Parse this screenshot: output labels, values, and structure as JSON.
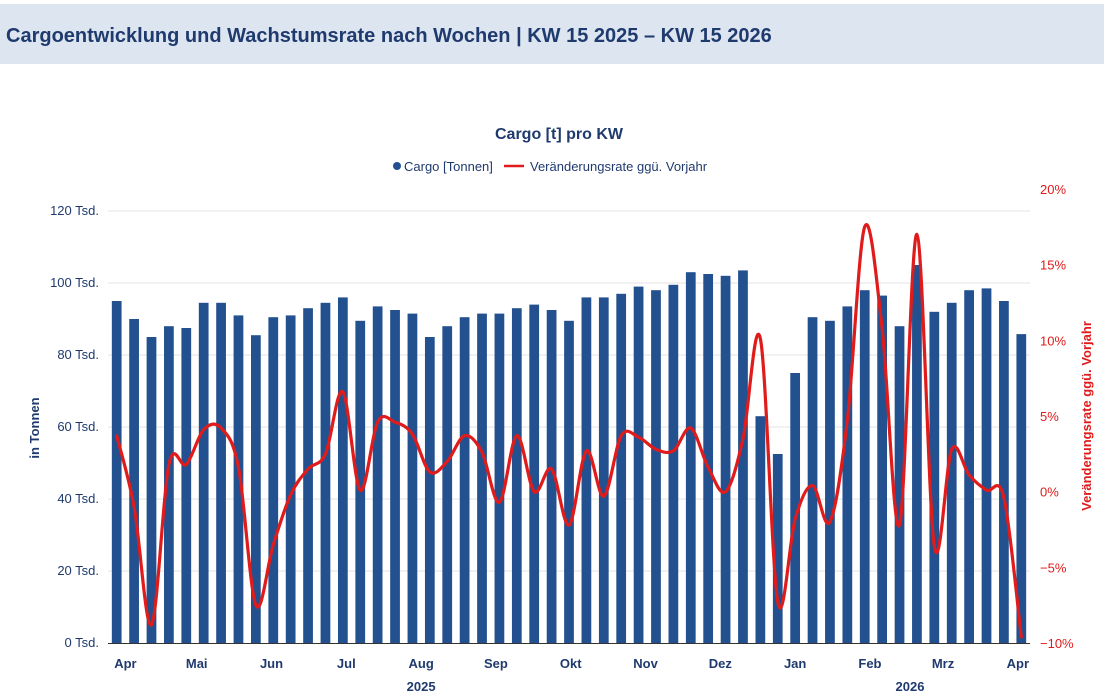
{
  "header": {
    "title": "Cargoentwicklung und Wachstumsrate nach Wochen | KW 15 2025 – KW 15 2026"
  },
  "colors": {
    "bar": "#23508f",
    "line": "#e01b1b",
    "axis_left": "#1f3a6e",
    "axis_right": "#e01b1b",
    "grid": "#e3e3e3"
  },
  "chart_data": {
    "type": "bar",
    "title": "Cargo [t] pro KW",
    "legend": {
      "position": "top",
      "entries": [
        "Cargo [Tonnen]",
        "Veränderungsrate ggü. Vorjahr"
      ]
    },
    "ylabel": "in Tonnen",
    "y2label": "Veränderungsrate ggü. Vorjahr",
    "ylim": [
      0,
      120000
    ],
    "y2lim": [
      -10,
      20
    ],
    "yticks": [
      {
        "value": 0,
        "label": "0 Tsd."
      },
      {
        "value": 20000,
        "label": "20 Tsd."
      },
      {
        "value": 40000,
        "label": "40 Tsd."
      },
      {
        "value": 60000,
        "label": "60 Tsd."
      },
      {
        "value": 80000,
        "label": "80 Tsd."
      },
      {
        "value": 100000,
        "label": "100 Tsd."
      },
      {
        "value": 120000,
        "label": "120 Tsd."
      }
    ],
    "y2ticks": [
      {
        "value": -10,
        "label": "−10%"
      },
      {
        "value": -5,
        "label": "−5%"
      },
      {
        "value": 0,
        "label": "0%"
      },
      {
        "value": 5,
        "label": "5%"
      },
      {
        "value": 10,
        "label": "10%"
      },
      {
        "value": 15,
        "label": "15%"
      },
      {
        "value": 20,
        "label": "20%"
      }
    ],
    "month_labels": [
      {
        "label": "Apr",
        "week": 0.5
      },
      {
        "label": "Mai",
        "week": 4.6
      },
      {
        "label": "Jun",
        "week": 8.9
      },
      {
        "label": "Jul",
        "week": 13.2
      },
      {
        "label": "Aug",
        "week": 17.5
      },
      {
        "label": "Sep",
        "week": 21.8
      },
      {
        "label": "Okt",
        "week": 26.1
      },
      {
        "label": "Nov",
        "week": 30.4
      },
      {
        "label": "Dez",
        "week": 34.7
      },
      {
        "label": "Jan",
        "week": 39.0
      },
      {
        "label": "Feb",
        "week": 43.3
      },
      {
        "label": "Mrz",
        "week": 47.5
      },
      {
        "label": "Apr",
        "week": 51.8
      }
    ],
    "year_labels": [
      {
        "label": "2025",
        "week": 17.5
      },
      {
        "label": "2026",
        "week": 45.6
      }
    ],
    "series": [
      {
        "name": "Cargo [Tonnen]",
        "type": "bar",
        "axis": "left",
        "values": [
          95000,
          90000,
          85000,
          88000,
          87500,
          94500,
          94500,
          91000,
          85500,
          90500,
          91000,
          93000,
          94500,
          96000,
          89500,
          93500,
          92500,
          91500,
          85000,
          88000,
          90500,
          91500,
          91500,
          93000,
          94000,
          92500,
          89500,
          96000,
          96000,
          97000,
          99000,
          98000,
          99500,
          103000,
          102500,
          102000,
          103500,
          63000,
          52500,
          75000,
          90500,
          89500,
          93500,
          98000,
          96500,
          88000,
          105000,
          92000,
          94500,
          98000,
          98500,
          95000,
          85800
        ]
      },
      {
        "name": "Veränderungsrate ggü. Vorjahr",
        "type": "line",
        "axis": "right",
        "values": [
          3.7,
          -1.0,
          -8.8,
          1.8,
          1.8,
          4.1,
          4.2,
          1.6,
          -7.5,
          -3.5,
          -0.2,
          1.5,
          2.5,
          6.6,
          0.1,
          4.6,
          4.6,
          3.8,
          1.3,
          2.0,
          3.7,
          2.6,
          -0.7,
          3.7,
          0.0,
          1.5,
          -2.2,
          2.7,
          -0.3,
          3.7,
          3.6,
          2.8,
          2.7,
          4.2,
          1.6,
          0.0,
          3.5,
          10.1,
          -7.3,
          -1.8,
          0.4,
          -2.0,
          4.7,
          17.5,
          10.8,
          -2.2,
          17.0,
          -3.6,
          2.8,
          1.1,
          0.1,
          -0.4,
          -9.6
        ]
      }
    ]
  }
}
